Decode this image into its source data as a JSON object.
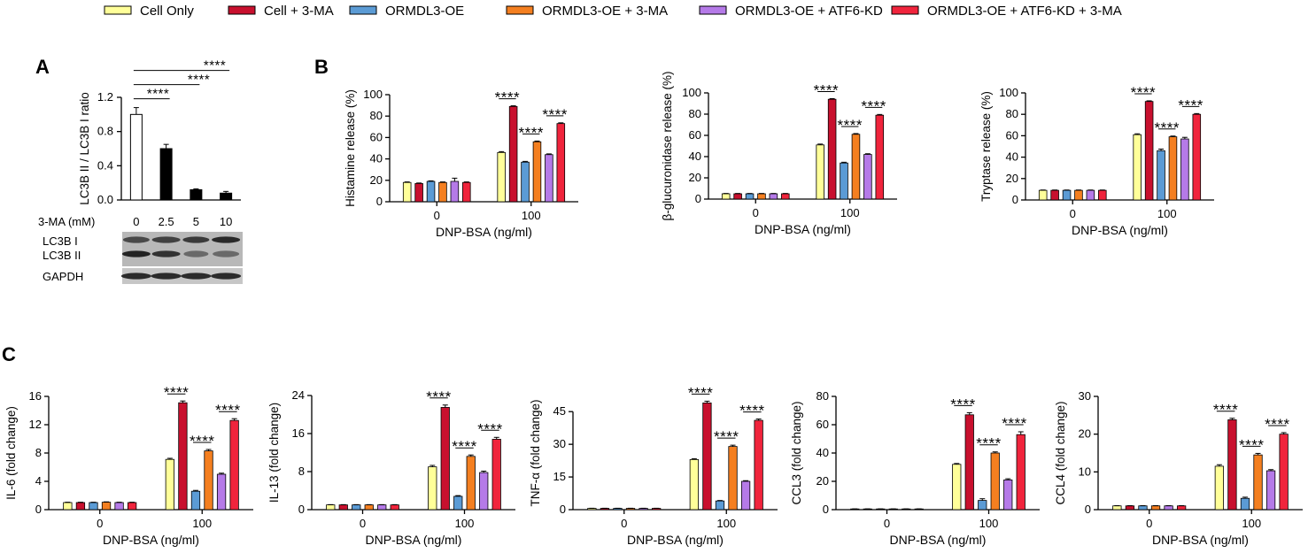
{
  "legend": [
    {
      "label": "Cell Only",
      "color": "#FFFF99"
    },
    {
      "label": "Cell + 3-MA",
      "color": "#C8102E"
    },
    {
      "label": "ORMDL3-OE",
      "color": "#5B9BD5"
    },
    {
      "label": "ORMDL3-OE + 3-MA",
      "color": "#F47F20"
    },
    {
      "label": "ORMDL3-OE + ATF6-KD",
      "color": "#B57AE8"
    },
    {
      "label": "ORMDL3-OE + ATF6-KD + 3-MA",
      "color": "#F0243C"
    }
  ],
  "panel_labels": {
    "a": "A",
    "b": "B",
    "c": "C"
  },
  "blot": {
    "row_label": "3-MA (mM)",
    "lanes": [
      "0",
      "2.5",
      "5",
      "10"
    ],
    "bands": [
      "LC3B I",
      "LC3B II",
      "GAPDH"
    ]
  },
  "chart_data": [
    {
      "id": "A",
      "type": "bar",
      "title": "",
      "ylabel": "LC3B II / LC3B I ratio",
      "xlabel": "",
      "categories": [
        "0",
        "2.5",
        "5",
        "10"
      ],
      "values": [
        1.0,
        0.6,
        0.12,
        0.08
      ],
      "errors": [
        0.08,
        0.05,
        0.01,
        0.02
      ],
      "colors": [
        "#ffffff",
        "#000000",
        "#000000",
        "#000000"
      ],
      "ylim": [
        0,
        1.2
      ],
      "yticks": [
        0.0,
        0.4,
        0.8,
        1.2
      ],
      "significance": [
        "****",
        "****",
        "****"
      ]
    },
    {
      "id": "B1",
      "type": "bar",
      "ylabel": "Histamine release (%)",
      "xlabel": "DNP-BSA (ng/ml)",
      "groups": [
        "0",
        "100"
      ],
      "ylim": [
        0,
        100
      ],
      "yticks": [
        0,
        20,
        40,
        60,
        80,
        100
      ],
      "series": [
        {
          "name": "Cell Only",
          "values": [
            18,
            46
          ],
          "errors": [
            0.5,
            0.8
          ]
        },
        {
          "name": "Cell + 3-MA",
          "values": [
            17,
            89
          ],
          "errors": [
            0.5,
            0.6
          ]
        },
        {
          "name": "ORMDL3-OE",
          "values": [
            19,
            37
          ],
          "errors": [
            0.5,
            0.7
          ]
        },
        {
          "name": "ORMDL3-OE + 3-MA",
          "values": [
            18,
            56
          ],
          "errors": [
            0.5,
            0.7
          ]
        },
        {
          "name": "ORMDL3-OE + ATF6-KD",
          "values": [
            19,
            44
          ],
          "errors": [
            3,
            0.7
          ]
        },
        {
          "name": "ORMDL3-OE + ATF6-KD + 3-MA",
          "values": [
            18,
            73
          ],
          "errors": [
            0.5,
            0.7
          ]
        }
      ],
      "significance": [
        "****",
        "****",
        "****"
      ]
    },
    {
      "id": "B2",
      "type": "bar",
      "ylabel": "β-glucuronidase release (%)",
      "xlabel": "DNP-BSA (ng/ml)",
      "groups": [
        "0",
        "100"
      ],
      "ylim": [
        0,
        100
      ],
      "yticks": [
        0,
        20,
        40,
        60,
        80,
        100
      ],
      "series": [
        {
          "name": "Cell Only",
          "values": [
            5,
            51
          ],
          "errors": [
            0.3,
            0.8
          ]
        },
        {
          "name": "Cell + 3-MA",
          "values": [
            5,
            94
          ],
          "errors": [
            0.3,
            0.6
          ]
        },
        {
          "name": "ORMDL3-OE",
          "values": [
            5,
            34
          ],
          "errors": [
            0.3,
            0.7
          ]
        },
        {
          "name": "ORMDL3-OE + 3-MA",
          "values": [
            5,
            61
          ],
          "errors": [
            0.3,
            0.7
          ]
        },
        {
          "name": "ORMDL3-OE + ATF6-KD",
          "values": [
            5,
            42
          ],
          "errors": [
            0.3,
            0.7
          ]
        },
        {
          "name": "ORMDL3-OE + ATF6-KD + 3-MA",
          "values": [
            5,
            79
          ],
          "errors": [
            0.3,
            0.7
          ]
        }
      ],
      "significance": [
        "****",
        "****",
        "****"
      ]
    },
    {
      "id": "B3",
      "type": "bar",
      "ylabel": "Tryptase release (%)",
      "xlabel": "DNP-BSA (ng/ml)",
      "groups": [
        "0",
        "100"
      ],
      "ylim": [
        0,
        100
      ],
      "yticks": [
        0,
        20,
        40,
        60,
        80,
        100
      ],
      "series": [
        {
          "name": "Cell Only",
          "values": [
            9,
            61
          ],
          "errors": [
            0.3,
            0.8
          ]
        },
        {
          "name": "Cell + 3-MA",
          "values": [
            9,
            92
          ],
          "errors": [
            0.3,
            0.6
          ]
        },
        {
          "name": "ORMDL3-OE",
          "values": [
            9,
            46
          ],
          "errors": [
            0.3,
            1.5
          ]
        },
        {
          "name": "ORMDL3-OE + 3-MA",
          "values": [
            9,
            59
          ],
          "errors": [
            0.3,
            0.7
          ]
        },
        {
          "name": "ORMDL3-OE + ATF6-KD",
          "values": [
            9,
            57
          ],
          "errors": [
            0.3,
            1.5
          ]
        },
        {
          "name": "ORMDL3-OE + ATF6-KD + 3-MA",
          "values": [
            9,
            80
          ],
          "errors": [
            0.3,
            0.7
          ]
        }
      ],
      "significance": [
        "****",
        "****",
        "****"
      ]
    },
    {
      "id": "C1",
      "type": "bar",
      "ylabel": "IL-6 (fold change)",
      "xlabel": "DNP-BSA (ng/ml)",
      "groups": [
        "0",
        "100"
      ],
      "ylim": [
        0,
        16
      ],
      "yticks": [
        0,
        4,
        8,
        12,
        16
      ],
      "series": [
        {
          "name": "Cell Only",
          "values": [
            1,
            7.1
          ],
          "errors": [
            0.05,
            0.15
          ]
        },
        {
          "name": "Cell + 3-MA",
          "values": [
            1,
            15.1
          ],
          "errors": [
            0.05,
            0.25
          ]
        },
        {
          "name": "ORMDL3-OE",
          "values": [
            1,
            2.6
          ],
          "errors": [
            0.05,
            0.12
          ]
        },
        {
          "name": "ORMDL3-OE + 3-MA",
          "values": [
            1.05,
            8.3
          ],
          "errors": [
            0.05,
            0.2
          ]
        },
        {
          "name": "ORMDL3-OE + ATF6-KD",
          "values": [
            1,
            5
          ],
          "errors": [
            0.05,
            0.15
          ]
        },
        {
          "name": "ORMDL3-OE + ATF6-KD + 3-MA",
          "values": [
            1,
            12.6
          ],
          "errors": [
            0.05,
            0.25
          ]
        }
      ],
      "significance": [
        "****",
        "****",
        "****"
      ]
    },
    {
      "id": "C2",
      "type": "bar",
      "ylabel": "IL-13  (fold change)",
      "xlabel": "DNP-BSA (ng/ml)",
      "groups": [
        "0",
        "100"
      ],
      "ylim": [
        0,
        24
      ],
      "yticks": [
        0,
        8,
        16,
        24
      ],
      "series": [
        {
          "name": "Cell Only",
          "values": [
            1,
            9
          ],
          "errors": [
            0.05,
            0.3
          ]
        },
        {
          "name": "Cell + 3-MA",
          "values": [
            1,
            21.5
          ],
          "errors": [
            0.05,
            0.5
          ]
        },
        {
          "name": "ORMDL3-OE",
          "values": [
            1,
            2.8
          ],
          "errors": [
            0.05,
            0.15
          ]
        },
        {
          "name": "ORMDL3-OE + 3-MA",
          "values": [
            1,
            11.2
          ],
          "errors": [
            0.05,
            0.3
          ]
        },
        {
          "name": "ORMDL3-OE + ATF6-KD",
          "values": [
            1,
            7.8
          ],
          "errors": [
            0.05,
            0.3
          ]
        },
        {
          "name": "ORMDL3-OE + ATF6-KD + 3-MA",
          "values": [
            1,
            14.8
          ],
          "errors": [
            0.05,
            0.4
          ]
        }
      ],
      "significance": [
        "****",
        "****",
        "****"
      ]
    },
    {
      "id": "C3",
      "type": "bar",
      "ylabel": "TNF-α (fold change)",
      "xlabel": "DNP-BSA (ng/ml)",
      "groups": [
        "0",
        "100"
      ],
      "ylim": [
        0,
        52
      ],
      "yticks": [
        0,
        15,
        30,
        45
      ],
      "series": [
        {
          "name": "Cell Only",
          "values": [
            0.6,
            23
          ],
          "errors": [
            0.05,
            0.4
          ]
        },
        {
          "name": "Cell + 3-MA",
          "values": [
            0.6,
            49
          ],
          "errors": [
            0.05,
            0.8
          ]
        },
        {
          "name": "ORMDL3-OE",
          "values": [
            0.6,
            4
          ],
          "errors": [
            0.05,
            0.2
          ]
        },
        {
          "name": "ORMDL3-OE + 3-MA",
          "values": [
            0.6,
            29
          ],
          "errors": [
            0.05,
            0.6
          ]
        },
        {
          "name": "ORMDL3-OE + ATF6-KD",
          "values": [
            0.6,
            13
          ],
          "errors": [
            0.05,
            0.3
          ]
        },
        {
          "name": "ORMDL3-OE + ATF6-KD + 3-MA",
          "values": [
            0.6,
            41
          ],
          "errors": [
            0.05,
            0.6
          ]
        }
      ],
      "significance": [
        "****",
        "****",
        "****"
      ]
    },
    {
      "id": "C4",
      "type": "bar",
      "ylabel": "CCL3 (fold change)",
      "xlabel": "DNP-BSA (ng/ml)",
      "groups": [
        "0",
        "100"
      ],
      "ylim": [
        0,
        80
      ],
      "yticks": [
        0,
        20,
        40,
        60,
        80
      ],
      "series": [
        {
          "name": "Cell Only",
          "values": [
            0.5,
            32
          ],
          "errors": [
            0.05,
            0.6
          ]
        },
        {
          "name": "Cell + 3-MA",
          "values": [
            0.5,
            67
          ],
          "errors": [
            0.05,
            1.5
          ]
        },
        {
          "name": "ORMDL3-OE",
          "values": [
            0.5,
            6.5
          ],
          "errors": [
            0.05,
            1.2
          ]
        },
        {
          "name": "ORMDL3-OE + 3-MA",
          "values": [
            0.5,
            40
          ],
          "errors": [
            0.05,
            0.8
          ]
        },
        {
          "name": "ORMDL3-OE + ATF6-KD",
          "values": [
            0.5,
            21
          ],
          "errors": [
            0.05,
            0.8
          ]
        },
        {
          "name": "ORMDL3-OE + ATF6-KD + 3-MA",
          "values": [
            0.5,
            53
          ],
          "errors": [
            0.05,
            2
          ]
        }
      ],
      "significance": [
        "****",
        "****",
        "****"
      ]
    },
    {
      "id": "C5",
      "type": "bar",
      "ylabel": "CCL4 (fold change)",
      "xlabel": "DNP-BSA (ng/ml)",
      "groups": [
        "0",
        "100"
      ],
      "ylim": [
        0,
        30
      ],
      "yticks": [
        0,
        10,
        20,
        30
      ],
      "series": [
        {
          "name": "Cell Only",
          "values": [
            1,
            11.5
          ],
          "errors": [
            0.05,
            0.4
          ]
        },
        {
          "name": "Cell + 3-MA",
          "values": [
            1,
            23.8
          ],
          "errors": [
            0.05,
            0.4
          ]
        },
        {
          "name": "ORMDL3-OE",
          "values": [
            1,
            3
          ],
          "errors": [
            0.05,
            0.3
          ]
        },
        {
          "name": "ORMDL3-OE + 3-MA",
          "values": [
            1,
            14.5
          ],
          "errors": [
            0.05,
            0.4
          ]
        },
        {
          "name": "ORMDL3-OE + ATF6-KD",
          "values": [
            1,
            10.3
          ],
          "errors": [
            0.05,
            0.3
          ]
        },
        {
          "name": "ORMDL3-OE + ATF6-KD + 3-MA",
          "values": [
            1,
            20
          ],
          "errors": [
            0.05,
            0.4
          ]
        }
      ],
      "significance": [
        "****",
        "****",
        "****"
      ]
    }
  ]
}
